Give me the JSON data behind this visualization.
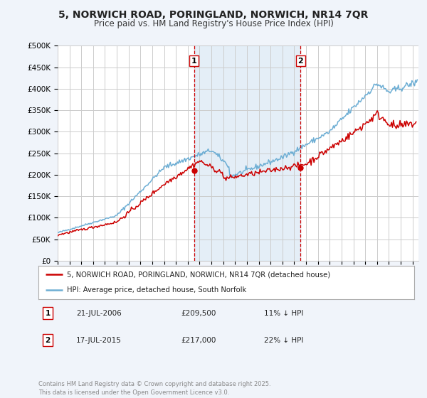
{
  "title": "5, NORWICH ROAD, PORINGLAND, NORWICH, NR14 7QR",
  "subtitle": "Price paid vs. HM Land Registry's House Price Index (HPI)",
  "bg_color": "#f0f4fa",
  "plot_bg_color": "#ffffff",
  "grid_color": "#cccccc",
  "hpi_color": "#6daed4",
  "price_color": "#cc0000",
  "marker_color": "#cc0000",
  "vline_color": "#cc0000",
  "shade_color": "#d9e8f5",
  "ylim": [
    0,
    500000
  ],
  "yticks": [
    0,
    50000,
    100000,
    150000,
    200000,
    250000,
    300000,
    350000,
    400000,
    450000,
    500000
  ],
  "ytick_labels": [
    "£0",
    "£50K",
    "£100K",
    "£150K",
    "£200K",
    "£250K",
    "£300K",
    "£350K",
    "£400K",
    "£450K",
    "£500K"
  ],
  "xmin": 1995,
  "xmax": 2025.5,
  "sale1_x": 2006.54,
  "sale1_y": 209500,
  "sale1_label": "1",
  "sale1_date": "21-JUL-2006",
  "sale1_price": "£209,500",
  "sale1_hpi": "11% ↓ HPI",
  "sale2_x": 2015.54,
  "sale2_y": 217000,
  "sale2_label": "2",
  "sale2_date": "17-JUL-2015",
  "sale2_price": "£217,000",
  "sale2_hpi": "22% ↓ HPI",
  "legend_line1": "5, NORWICH ROAD, PORINGLAND, NORWICH, NR14 7QR (detached house)",
  "legend_line2": "HPI: Average price, detached house, South Norfolk",
  "footer": "Contains HM Land Registry data © Crown copyright and database right 2025.\nThis data is licensed under the Open Government Licence v3.0.",
  "xticks": [
    1995,
    1996,
    1997,
    1998,
    1999,
    2000,
    2001,
    2002,
    2003,
    2004,
    2005,
    2006,
    2007,
    2008,
    2009,
    2010,
    2011,
    2012,
    2013,
    2014,
    2015,
    2016,
    2017,
    2018,
    2019,
    2020,
    2021,
    2022,
    2023,
    2024,
    2025
  ]
}
